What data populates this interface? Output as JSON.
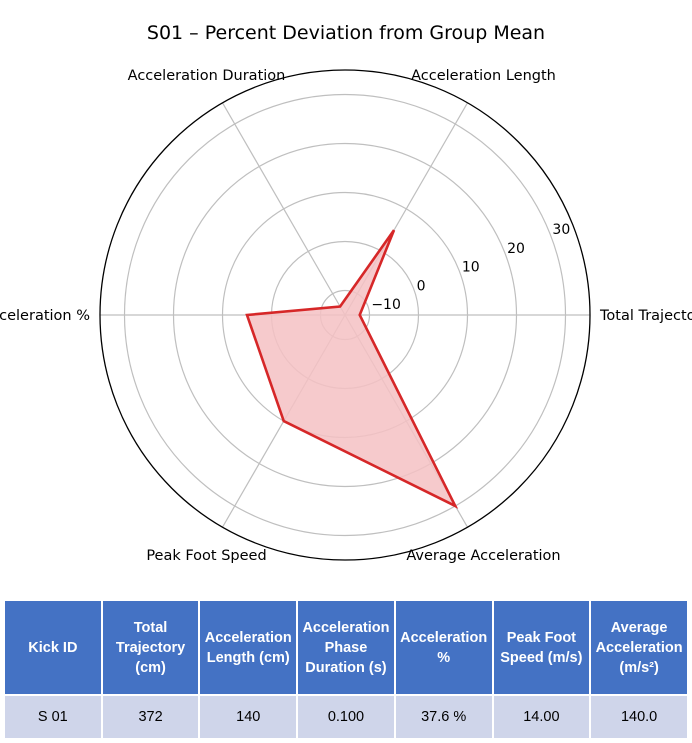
{
  "chart_data": {
    "type": "radar",
    "title": "S01 – Percent Deviation from Group Mean",
    "axes": [
      "Total Trajectory",
      "Acceleration Length",
      "Acceleration Duration",
      "Acceleration %",
      "Peak Foot Speed",
      "Average Acceleration"
    ],
    "series": [
      {
        "values": [
          -12,
          5,
          -13,
          5,
          10,
          30
        ]
      }
    ],
    "r_range": [
      -15,
      35
    ],
    "r_ticks": [
      -10,
      0,
      10,
      20,
      30
    ],
    "r_tick_labels": [
      "−10",
      "0",
      "10",
      "20",
      "30"
    ],
    "grid": true,
    "colors": {
      "line": "#d62728",
      "fill": "#f4c1c3",
      "grid": "#bfbfbf"
    }
  },
  "table": {
    "headers": [
      "Kick ID",
      "Total Trajectory (cm)",
      "Acceleration Length (cm)",
      "Acceleration Phase Duration (s)",
      "Acceleration %",
      "Peak Foot Speed (m/s)",
      "Average Acceleration (m/s²)"
    ],
    "rows": [
      [
        "S 01",
        "372",
        "140",
        "0.100",
        "37.6 %",
        "14.00",
        "140.0"
      ]
    ]
  },
  "colors": {
    "header_bg": "#4472c4",
    "row_bg": "#cfd5ea"
  }
}
